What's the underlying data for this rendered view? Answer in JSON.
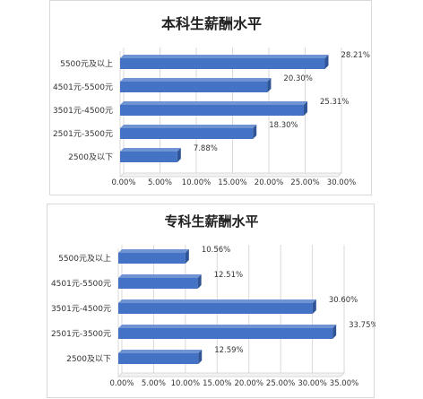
{
  "chart_data": [
    {
      "type": "bar",
      "orientation": "horizontal",
      "title": "本科生薪酬水平",
      "categories": [
        "5500元及以上",
        "4501元-5500元",
        "3501元-4500元",
        "2501元-3500元",
        "2500及以下"
      ],
      "values": [
        28.21,
        20.3,
        25.31,
        18.3,
        7.88
      ],
      "value_labels": [
        "28.21%",
        "20.30%",
        "25.31%",
        "18.30%",
        "7.88%"
      ],
      "x_ticks": [
        "0.00%",
        "5.00%",
        "10.00%",
        "15.00%",
        "20.00%",
        "25.00%",
        "30.00%"
      ],
      "xlim": [
        0,
        30
      ],
      "grid": true,
      "color": "#4472c4"
    },
    {
      "type": "bar",
      "orientation": "horizontal",
      "title": "专科生薪酬水平",
      "categories": [
        "5500元及以上",
        "4501元-5500元",
        "3501元-4500元",
        "2501元-3500元",
        "2500及以下"
      ],
      "values": [
        10.56,
        12.51,
        30.6,
        33.75,
        12.59
      ],
      "value_labels": [
        "10.56%",
        "12.51%",
        "30.60%",
        "33.75%",
        "12.59%"
      ],
      "x_ticks": [
        "0.00%",
        "5.00%",
        "10.00%",
        "15.00%",
        "20.00%",
        "25.00%",
        "30.00%",
        "35.00%"
      ],
      "xlim": [
        0,
        35
      ],
      "grid": true,
      "color": "#4472c4"
    }
  ]
}
